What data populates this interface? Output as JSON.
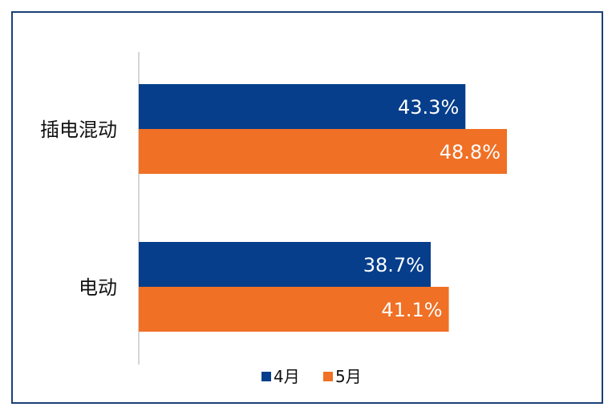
{
  "chart_data": {
    "type": "bar",
    "orientation": "horizontal",
    "categories": [
      "插电混动",
      "电动"
    ],
    "series": [
      {
        "name": "4月",
        "color": "#063e8b",
        "values": [
          43.3,
          38.7
        ],
        "labels": [
          "43.3%",
          "38.7%"
        ]
      },
      {
        "name": "5月",
        "color": "#f07025",
        "values": [
          48.8,
          41.1
        ],
        "labels": [
          "48.8%",
          "41.1%"
        ]
      }
    ],
    "title": "",
    "xlabel": "",
    "ylabel": "",
    "xlim": [
      0,
      60
    ],
    "grid": false,
    "legend_position": "bottom"
  }
}
